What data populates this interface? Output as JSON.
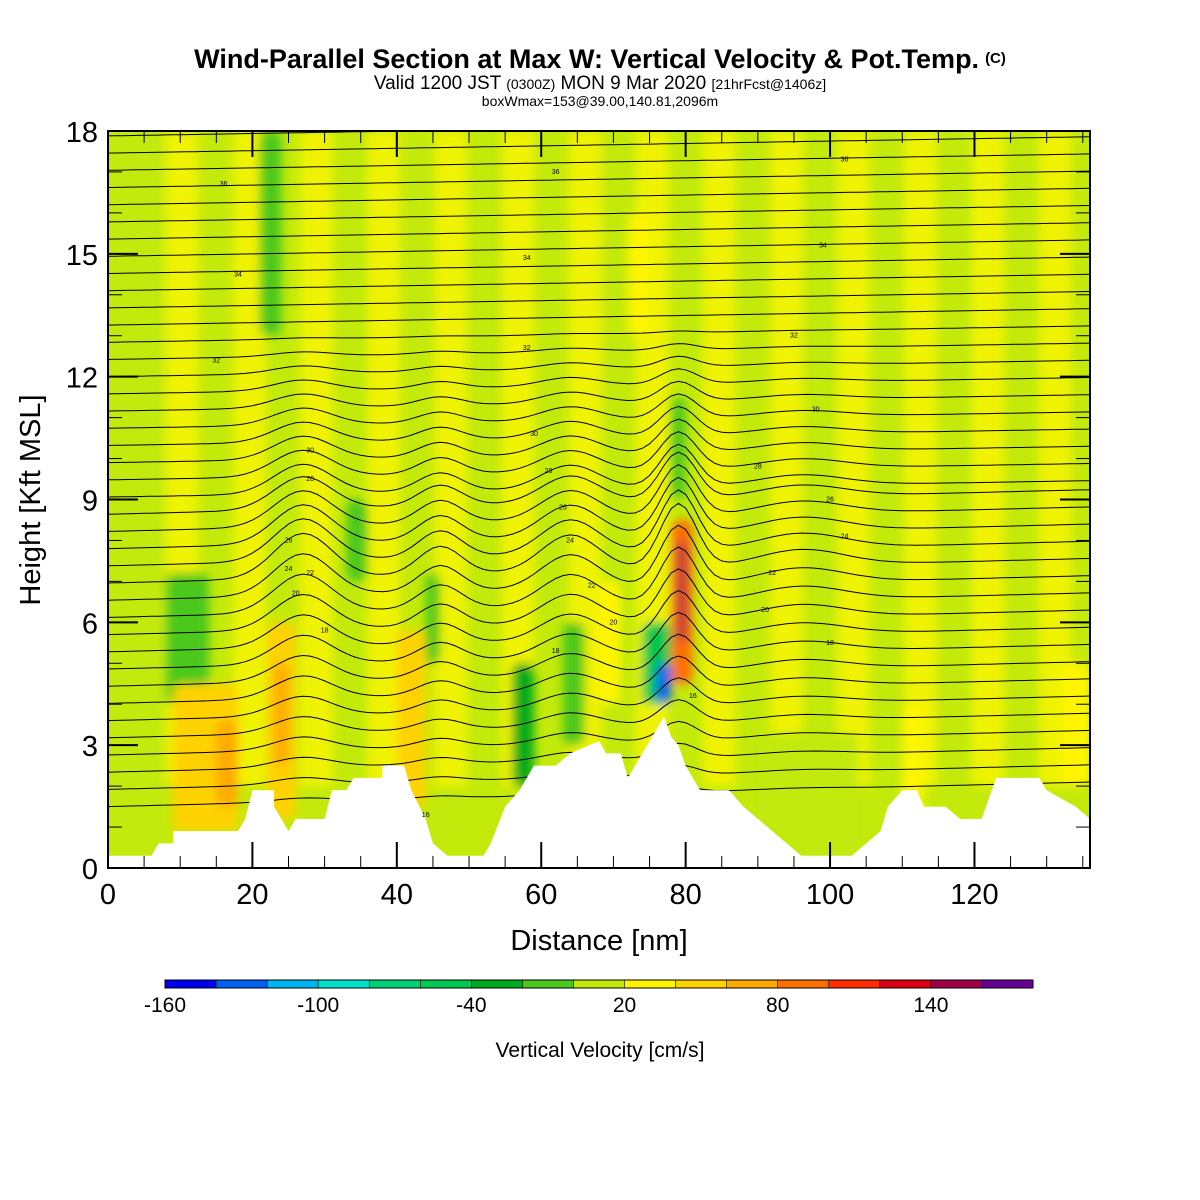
{
  "header": {
    "title": "Wind-Parallel Section at Max W: Vertical Velocity & Pot.Temp.",
    "title_mark": "(C)",
    "valid_label": "Valid 1200 JST",
    "valid_utc": "(0300Z)",
    "valid_date": "MON 9 Mar 2020",
    "forecast": "[21hrFcst@1406z]",
    "box_wmax": "boxWmax=153@39.00,140.81,2096m"
  },
  "colorbar": {
    "label": "Vertical Velocity [cm/s]",
    "tick_labels": [
      "-160",
      "-100",
      "-40",
      "20",
      "80",
      "140"
    ],
    "colors": [
      "#0000f0",
      "#0060f0",
      "#00b4f0",
      "#00e2c8",
      "#00d278",
      "#00c850",
      "#00aa1e",
      "#4bc81e",
      "#c3ea0a",
      "#fff500",
      "#ffd200",
      "#ffaa00",
      "#ff6e00",
      "#ff2d00",
      "#dc0014",
      "#a00046",
      "#690096"
    ]
  },
  "chart_data": {
    "type": "heatmap",
    "xlabel": "Distance [nm]",
    "ylabel": "Height [Kft MSL]",
    "xlim": [
      0,
      136
    ],
    "ylim": [
      0,
      18
    ],
    "xticks": [
      0,
      20,
      40,
      60,
      80,
      100,
      120
    ],
    "yticks": [
      0,
      3,
      6,
      9,
      12,
      15,
      18
    ],
    "terrain_kft": [
      [
        0,
        0.3
      ],
      [
        6,
        0.3
      ],
      [
        7,
        0.6
      ],
      [
        9,
        0.6
      ],
      [
        9,
        0.9
      ],
      [
        18,
        0.9
      ],
      [
        19,
        1.2
      ],
      [
        20,
        1.9
      ],
      [
        23,
        1.9
      ],
      [
        23,
        1.5
      ],
      [
        24,
        1.2
      ],
      [
        25,
        0.9
      ],
      [
        26,
        1.2
      ],
      [
        30,
        1.2
      ],
      [
        31,
        1.9
      ],
      [
        33,
        1.9
      ],
      [
        34,
        2.2
      ],
      [
        38,
        2.2
      ],
      [
        38,
        2.5
      ],
      [
        41,
        2.5
      ],
      [
        42,
        1.9
      ],
      [
        44,
        1.2
      ],
      [
        45,
        0.6
      ],
      [
        47,
        0.3
      ],
      [
        52,
        0.3
      ],
      [
        53,
        0.6
      ],
      [
        55,
        1.5
      ],
      [
        57,
        1.9
      ],
      [
        59,
        2.5
      ],
      [
        62,
        2.5
      ],
      [
        64,
        2.8
      ],
      [
        68,
        3.1
      ],
      [
        69,
        2.8
      ],
      [
        71,
        2.8
      ],
      [
        72,
        2.2
      ],
      [
        73,
        2.5
      ],
      [
        76,
        3.4
      ],
      [
        77,
        3.7
      ],
      [
        78,
        3.2
      ],
      [
        79,
        3.0
      ],
      [
        80,
        2.5
      ],
      [
        82,
        1.9
      ],
      [
        86,
        1.9
      ],
      [
        88,
        1.5
      ],
      [
        90,
        1.2
      ],
      [
        94,
        0.6
      ],
      [
        96,
        0.3
      ],
      [
        103,
        0.3
      ],
      [
        105,
        0.6
      ],
      [
        107,
        0.9
      ],
      [
        108,
        1.5
      ],
      [
        110,
        1.9
      ],
      [
        112,
        1.9
      ],
      [
        113,
        1.5
      ],
      [
        116,
        1.5
      ],
      [
        118,
        1.2
      ],
      [
        121,
        1.2
      ],
      [
        123,
        2.2
      ],
      [
        129,
        2.2
      ],
      [
        130,
        1.9
      ],
      [
        134,
        1.5
      ],
      [
        136,
        1.2
      ]
    ],
    "w_cells_cms": [
      {
        "x0": 0,
        "x1": 8,
        "y0": 0,
        "y1": 18,
        "w": 0
      },
      {
        "x0": 8,
        "x1": 14,
        "y0": 4,
        "y1": 7.2,
        "w": -30
      },
      {
        "x0": 9,
        "x1": 18,
        "y0": 0.9,
        "y1": 4.5,
        "w": 35
      },
      {
        "x0": 15,
        "x1": 18,
        "y0": 1.5,
        "y1": 3.6,
        "w": 60
      },
      {
        "x0": 22,
        "x1": 26,
        "y0": 1.2,
        "y1": 6,
        "w": 30
      },
      {
        "x0": 23,
        "x1": 25,
        "y0": 2.5,
        "y1": 5,
        "w": 55
      },
      {
        "x0": 21,
        "x1": 24,
        "y0": 13,
        "y1": 18,
        "w": -25
      },
      {
        "x0": 33,
        "x1": 36,
        "y0": 7,
        "y1": 9,
        "w": -20
      },
      {
        "x0": 40,
        "x1": 44,
        "y0": 1.5,
        "y1": 5.8,
        "w": 40
      },
      {
        "x0": 44,
        "x1": 46,
        "y0": 5,
        "y1": 7.2,
        "w": -25
      },
      {
        "x0": 56,
        "x1": 59,
        "y0": 2,
        "y1": 5,
        "w": -50
      },
      {
        "x0": 63,
        "x1": 66,
        "y0": 3,
        "y1": 6,
        "w": -20
      },
      {
        "x0": 68,
        "x1": 71,
        "y0": 4,
        "y1": 7,
        "w": 15
      },
      {
        "x0": 74,
        "x1": 78,
        "y0": 4,
        "y1": 6,
        "w": -60
      },
      {
        "x0": 76,
        "x1": 78,
        "y0": 4,
        "y1": 5,
        "w": -140
      },
      {
        "x0": 78,
        "x1": 81,
        "y0": 4.5,
        "y1": 8.5,
        "w": 80
      },
      {
        "x0": 79,
        "x1": 80,
        "y0": 5.5,
        "y1": 8,
        "w": 140
      },
      {
        "x0": 78,
        "x1": 80,
        "y0": 9,
        "y1": 11.5,
        "w": -30
      },
      {
        "x0": 72,
        "x1": 75,
        "y0": 13,
        "y1": 16,
        "w": 25
      },
      {
        "x0": 90,
        "x1": 104,
        "y0": 0.3,
        "y1": 3.3,
        "w": 0
      },
      {
        "x0": 110,
        "x1": 113,
        "y0": 0.9,
        "y1": 4,
        "w": 25
      },
      {
        "x0": 132,
        "x1": 136,
        "y0": 2,
        "y1": 5,
        "w": 25
      }
    ],
    "theta_contour_labels": [
      {
        "x": 16,
        "y": 16.7,
        "text": "36"
      },
      {
        "x": 62,
        "y": 17.0,
        "text": "36"
      },
      {
        "x": 102,
        "y": 17.3,
        "text": "36"
      },
      {
        "x": 18,
        "y": 14.5,
        "text": "34"
      },
      {
        "x": 58,
        "y": 14.9,
        "text": "34"
      },
      {
        "x": 99,
        "y": 15.2,
        "text": "34"
      },
      {
        "x": 15,
        "y": 12.4,
        "text": "32"
      },
      {
        "x": 58,
        "y": 12.7,
        "text": "32"
      },
      {
        "x": 95,
        "y": 13.0,
        "text": "32"
      },
      {
        "x": 28,
        "y": 10.2,
        "text": "30"
      },
      {
        "x": 59,
        "y": 10.6,
        "text": "30"
      },
      {
        "x": 98,
        "y": 11.2,
        "text": "30"
      },
      {
        "x": 28,
        "y": 9.5,
        "text": "28"
      },
      {
        "x": 61,
        "y": 9.7,
        "text": "28"
      },
      {
        "x": 90,
        "y": 9.8,
        "text": "28"
      },
      {
        "x": 25,
        "y": 8.0,
        "text": "26"
      },
      {
        "x": 63,
        "y": 8.8,
        "text": "26"
      },
      {
        "x": 100,
        "y": 9.0,
        "text": "26"
      },
      {
        "x": 25,
        "y": 7.3,
        "text": "24"
      },
      {
        "x": 64,
        "y": 8.0,
        "text": "24"
      },
      {
        "x": 102,
        "y": 8.1,
        "text": "24"
      },
      {
        "x": 28,
        "y": 7.2,
        "text": "22"
      },
      {
        "x": 67,
        "y": 6.9,
        "text": "22"
      },
      {
        "x": 92,
        "y": 7.2,
        "text": "22"
      },
      {
        "x": 26,
        "y": 6.7,
        "text": "20"
      },
      {
        "x": 70,
        "y": 6.0,
        "text": "20"
      },
      {
        "x": 91,
        "y": 6.3,
        "text": "20"
      },
      {
        "x": 30,
        "y": 5.8,
        "text": "18"
      },
      {
        "x": 62,
        "y": 5.3,
        "text": "18"
      },
      {
        "x": 100,
        "y": 5.5,
        "text": "18"
      },
      {
        "x": 44,
        "y": 1.3,
        "text": "16"
      },
      {
        "x": 81,
        "y": 4.2,
        "text": "16"
      }
    ]
  }
}
